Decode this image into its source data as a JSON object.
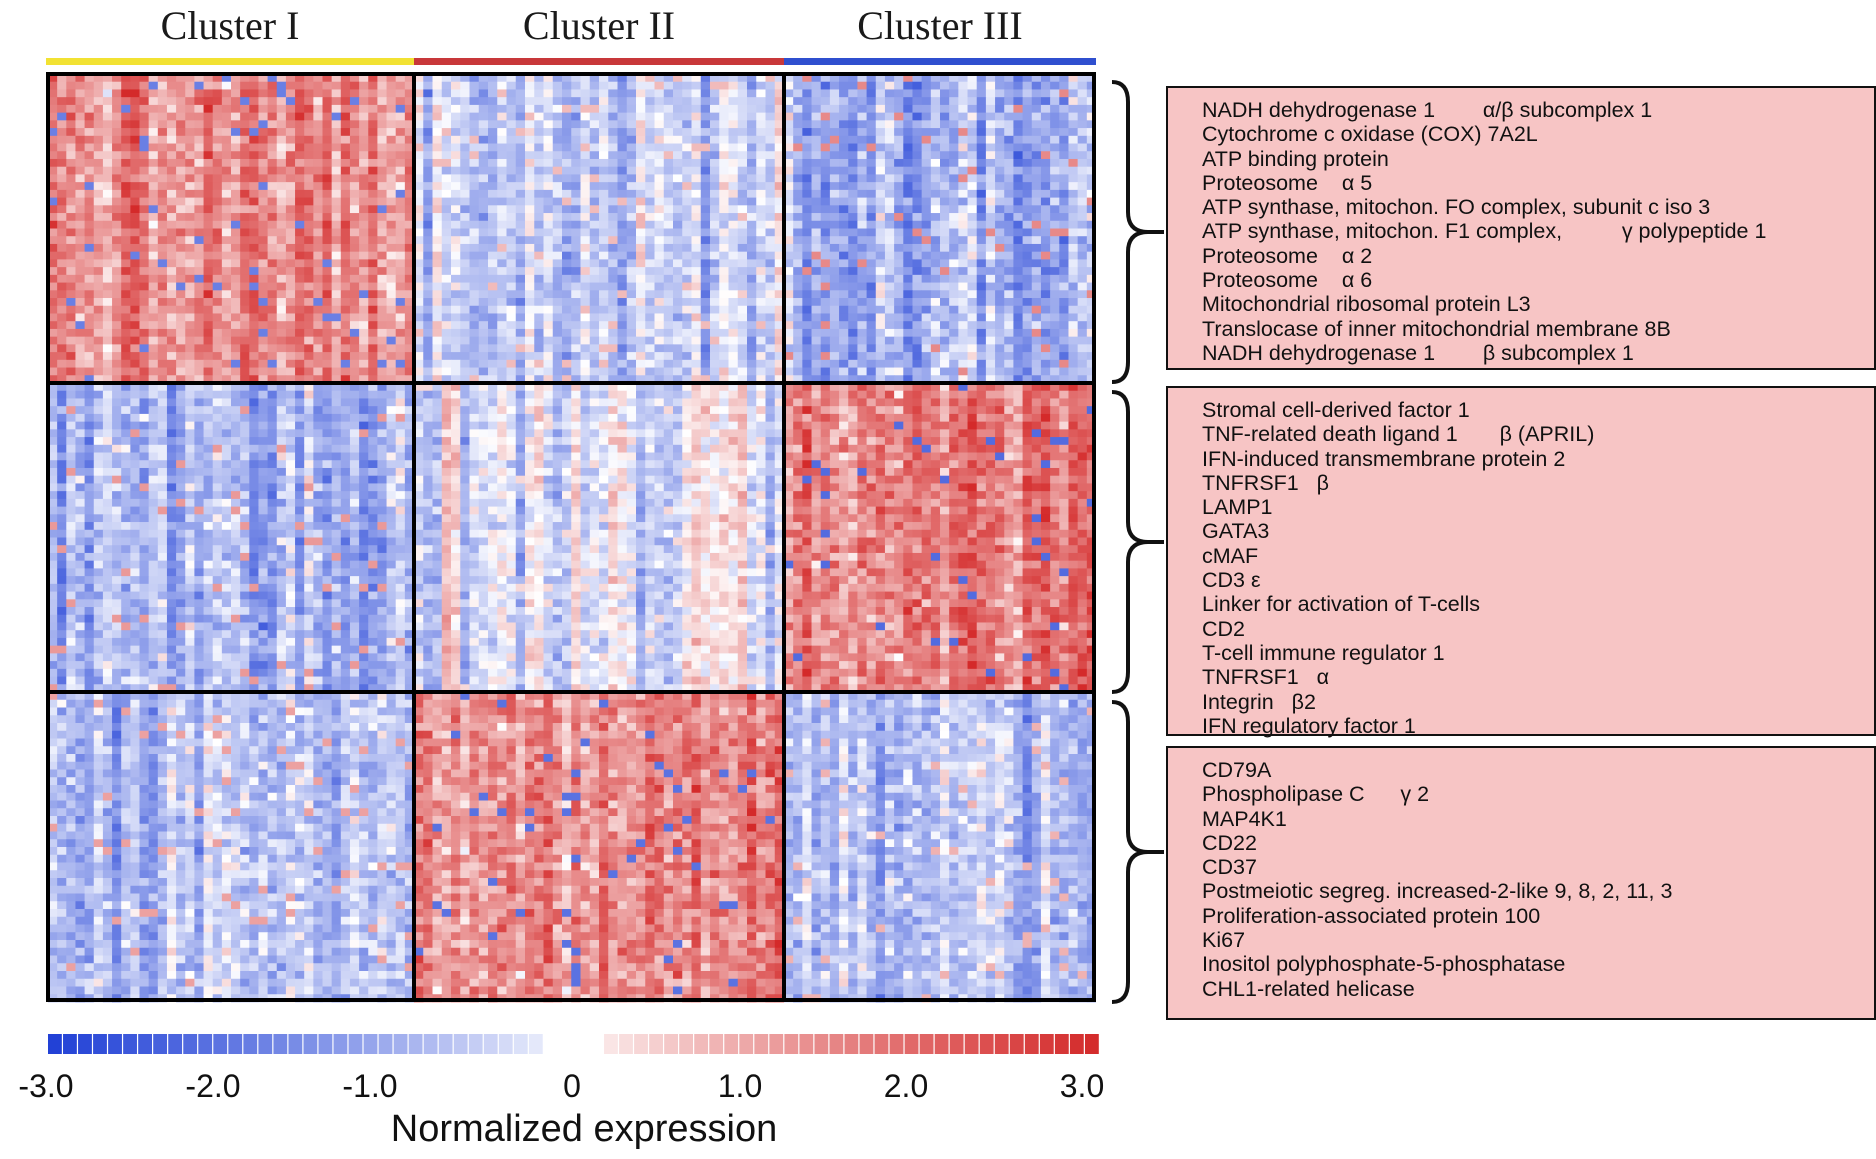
{
  "chart_data": {
    "type": "heatmap",
    "columns": [
      {
        "label": "Cluster I",
        "color": "#f2e233"
      },
      {
        "label": "Cluster II",
        "color": "#c8383a"
      },
      {
        "label": "Cluster III",
        "color": "#2f4fcf"
      }
    ],
    "block_means": [
      [
        1.5,
        -0.6,
        -1.2
      ],
      [
        -1.0,
        -0.3,
        1.8
      ],
      [
        -0.9,
        1.7,
        -0.7
      ]
    ],
    "gene_groups": [
      {
        "genes": [
          "NADH dehydrogenase 1        α/β subcomplex 1",
          "Cytochrome c oxidase (COX) 7A2L",
          "ATP binding protein",
          "Proteosome    α 5",
          "ATP synthase, mitochon. FO complex, subunit c iso 3",
          "ATP synthase, mitochon. F1 complex,          γ polypeptide 1",
          "Proteosome    α 2",
          "Proteosome    α 6",
          "Mitochondrial ribosomal protein L3",
          "Translocase of inner mitochondrial membrane 8B",
          "NADH dehydrogenase 1        β subcomplex 1"
        ]
      },
      {
        "genes": [
          "Stromal cell-derived factor 1",
          "TNF-related death ligand 1       β (APRIL)",
          "IFN-induced transmembrane protein 2",
          "TNFRSF1   β",
          "LAMP1",
          "GATA3",
          "cMAF",
          "CD3 ε",
          "Linker for activation of T-cells",
          "CD2",
          "T-cell immune regulator 1",
          "TNFRSF1   α",
          "Integrin   β2",
          "IFN regulatory factor 1"
        ]
      },
      {
        "genes": [
          "CD79A",
          "Phospholipase C      γ 2",
          "MAP4K1",
          "CD22",
          "CD37",
          "Postmeiotic segreg. increased-2-like 9, 8, 2, 11, 3",
          "Proliferation-associated protein 100",
          "Ki67",
          "Inositol polyphosphate-5-phosphatase",
          "CHL1-related helicase"
        ]
      }
    ],
    "colorbar": {
      "min": -3.0,
      "max": 3.0,
      "ticks": [
        "-3.0",
        "-2.0",
        "-1.0",
        "0",
        "1.0",
        "2.0",
        "3.0"
      ],
      "label": "Normalized expression",
      "low_color": "#1f3fd6",
      "mid_color": "#ffffff",
      "high_color": "#d42a2a"
    }
  }
}
